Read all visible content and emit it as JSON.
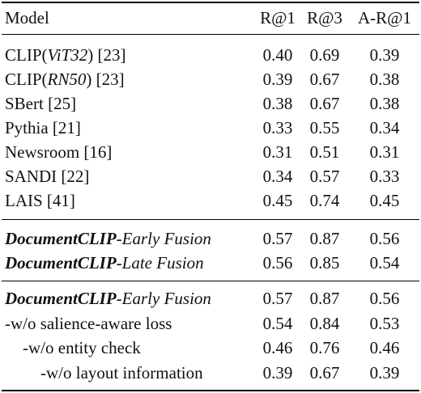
{
  "header": {
    "model": "Model",
    "r1": "R@1",
    "r3": "R@3",
    "ar1": "A-R@1"
  },
  "group1": [
    {
      "pre": "CLIP(",
      "it": "ViT32",
      "post": ") [23]",
      "r1": "0.40",
      "r3": "0.69",
      "ar1": "0.39"
    },
    {
      "pre": "CLIP(",
      "it": "RN50",
      "post": ") [23]",
      "r1": "0.39",
      "r3": "0.67",
      "ar1": "0.38"
    },
    {
      "pre": "SBert [25]",
      "r1": "0.38",
      "r3": "0.67",
      "ar1": "0.38"
    },
    {
      "pre": "Pythia [21]",
      "r1": "0.33",
      "r3": "0.55",
      "ar1": "0.34"
    },
    {
      "pre": "Newsroom [16]",
      "r1": "0.31",
      "r3": "0.51",
      "ar1": "0.31"
    },
    {
      "pre": "SANDI [22]",
      "r1": "0.34",
      "r3": "0.57",
      "ar1": "0.33"
    },
    {
      "pre": "LAIS [41]",
      "r1": "0.45",
      "r3": "0.74",
      "ar1": "0.45"
    }
  ],
  "group2": [
    {
      "bold": "DocumentCLIP",
      "it": "-Early Fusion",
      "r1": "0.57",
      "r3": "0.87",
      "ar1": "0.56"
    },
    {
      "bold": "DocumentCLIP",
      "it": "-Late Fusion",
      "r1": "0.56",
      "r3": "0.85",
      "ar1": "0.54"
    }
  ],
  "group3": [
    {
      "bold": "DocumentCLIP",
      "it": "-Early Fusion",
      "r1": "0.57",
      "r3": "0.87",
      "ar1": "0.56"
    },
    {
      "pre": "-w/o salience-aware loss",
      "r1": "0.54",
      "r3": "0.84",
      "ar1": "0.53"
    },
    {
      "pre": "-w/o entity check",
      "r1": "0.46",
      "r3": "0.76",
      "ar1": "0.46"
    },
    {
      "pre": "-w/o layout information",
      "r1": "0.39",
      "r3": "0.67",
      "ar1": "0.39"
    }
  ]
}
